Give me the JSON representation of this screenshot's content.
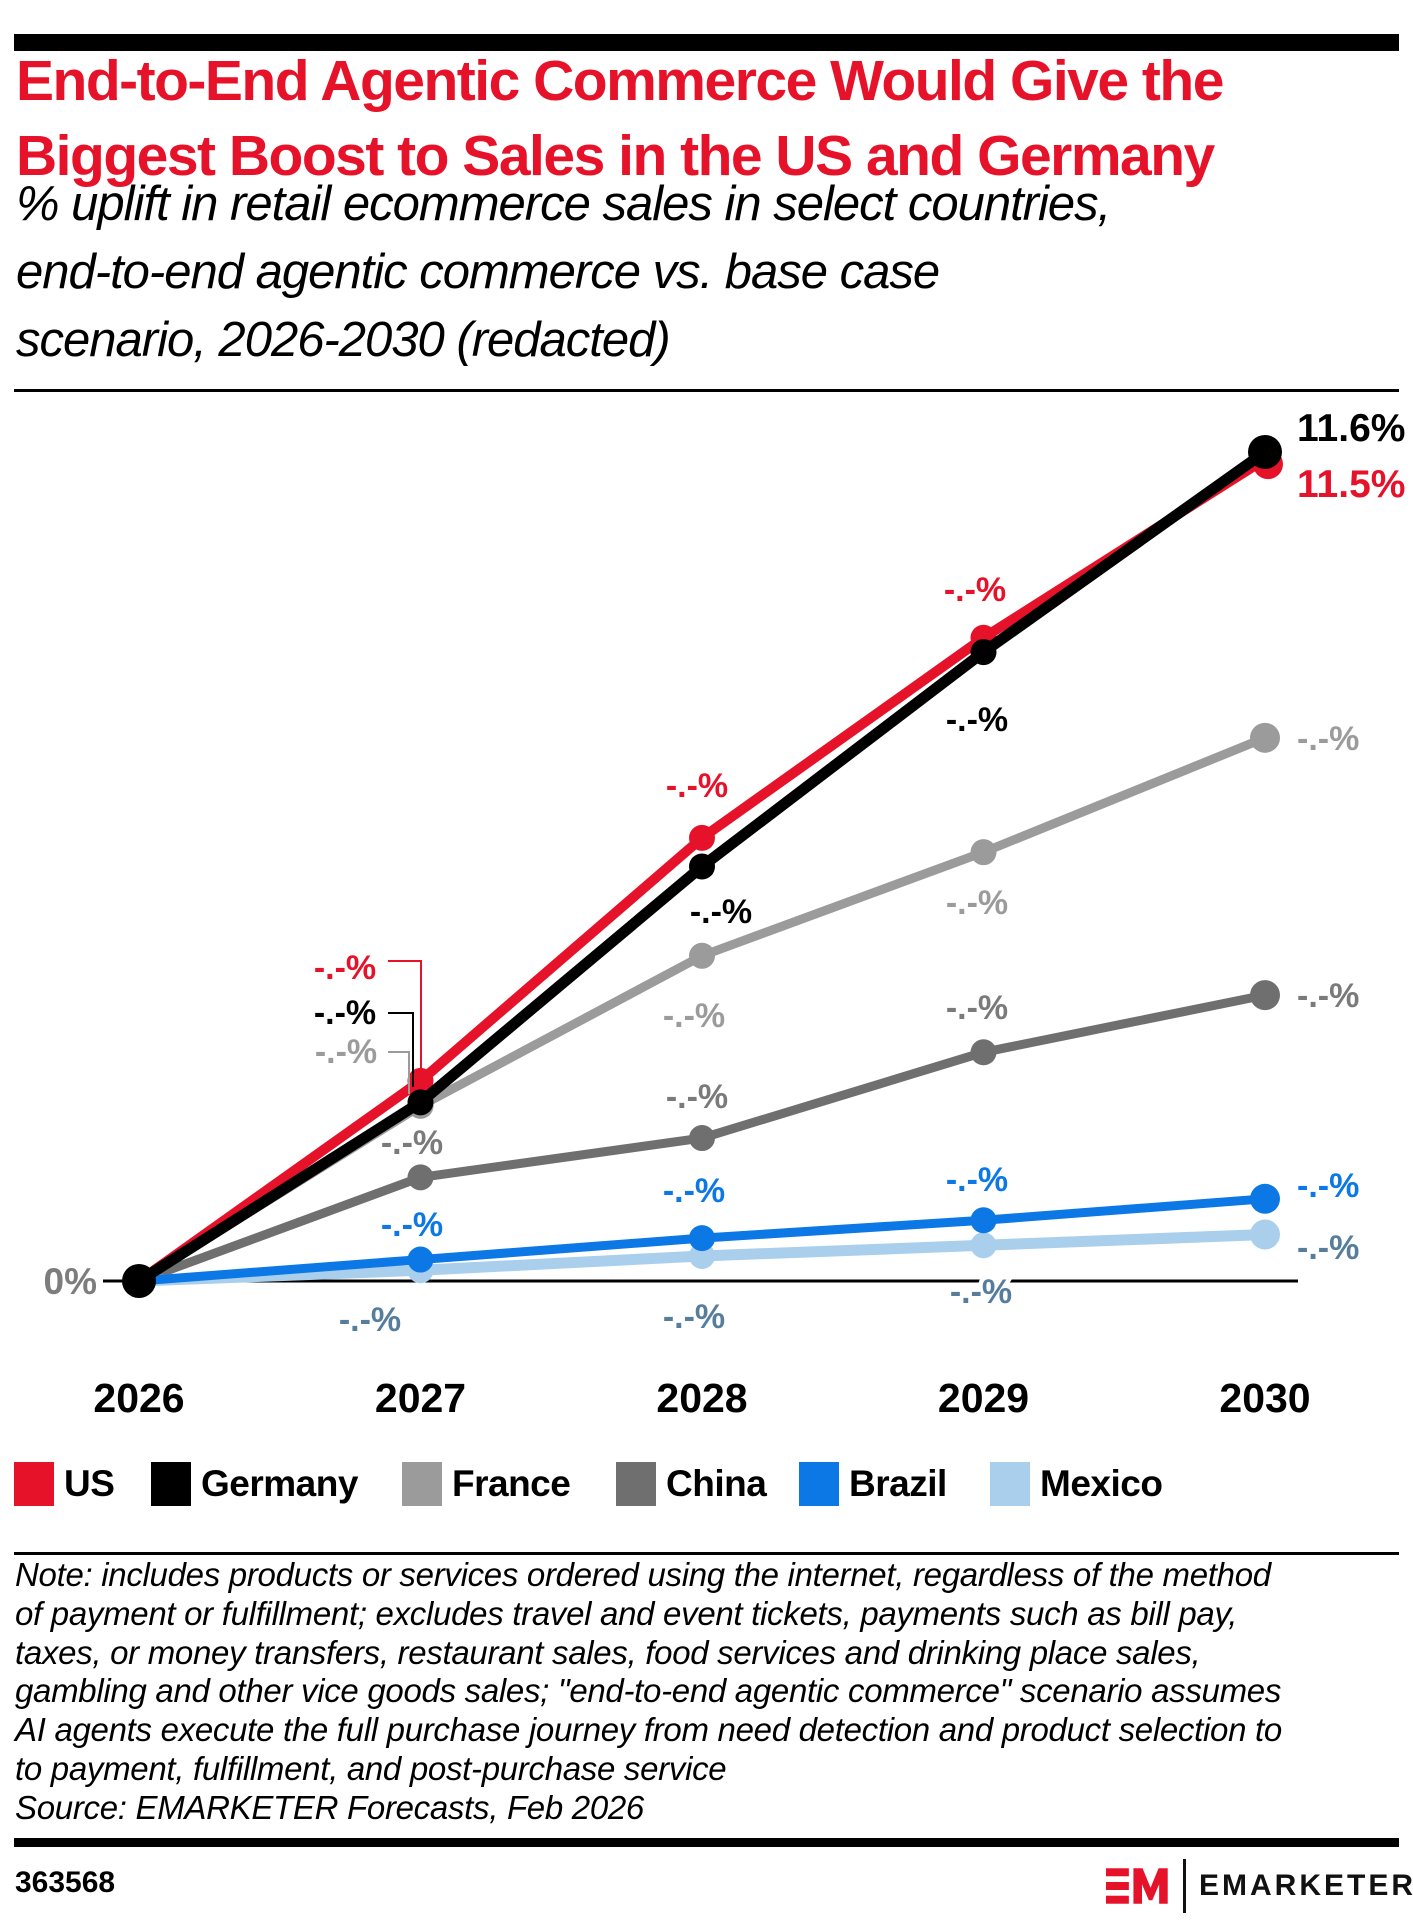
{
  "page": {
    "title_line1": "End-to-End Agentic Commerce Would Give the",
    "title_line2": "Biggest Boost to Sales in the US and Germany",
    "subtitle_line1": "% uplift in retail ecommerce sales in select countries,",
    "subtitle_line2": "end-to-end agentic commerce vs. base case",
    "subtitle_line3": "scenario, 2026-2030 (redacted)"
  },
  "chart_data": {
    "type": "line",
    "title": "End-to-End Agentic Commerce Would Give the Biggest Boost to Sales in the US and Germany",
    "subtitle": "% uplift in retail ecommerce sales in select countries, end-to-end agentic commerce vs. base case scenario, 2026-2030 (redacted)",
    "x_labels": [
      "2026",
      "2027",
      "2028",
      "2029",
      "2030"
    ],
    "y_axis_label": "0%",
    "ylim": [
      0,
      12
    ],
    "grid": false,
    "legend_position": "bottom",
    "redaction_label": "-.-%",
    "series": [
      {
        "name": "US",
        "color": "#E6122A",
        "values": [
          0,
          2.8,
          6.2,
          9.0,
          11.5
        ],
        "point_labels": [
          "",
          "-.-%",
          "-.-%",
          "-.-%",
          "11.5%"
        ]
      },
      {
        "name": "Germany",
        "color": "#000000",
        "values": [
          0,
          2.5,
          5.8,
          8.8,
          11.6
        ],
        "point_labels": [
          "",
          "-.-%",
          "-.-%",
          "-.-%",
          "11.6%"
        ]
      },
      {
        "name": "France",
        "color": "#9B9B9B",
        "values": [
          0,
          2.45,
          4.55,
          6.0,
          7.6
        ],
        "point_labels": [
          "",
          "-.-%",
          "-.-%",
          "-.-%",
          "-.-%"
        ]
      },
      {
        "name": "China",
        "color": "#6F6F6F",
        "label_color": "#7A7A7A",
        "values": [
          0,
          1.45,
          2.0,
          3.2,
          4.0
        ],
        "point_labels": [
          "",
          "-.-%",
          "-.-%",
          "-.-%",
          "-.-%"
        ]
      },
      {
        "name": "Brazil",
        "color": "#0C78E6",
        "values": [
          0,
          0.3,
          0.6,
          0.85,
          1.15
        ],
        "point_labels": [
          "",
          "-.-%",
          "-.-%",
          "-.-%",
          "-.-%"
        ]
      },
      {
        "name": "Mexico",
        "color": "#A9CFEC",
        "label_color": "#567D9C",
        "values": [
          0,
          0.15,
          0.35,
          0.5,
          0.65
        ],
        "point_labels": [
          "",
          "-.-%",
          "-.-%",
          "-.-%",
          "-.-%"
        ]
      }
    ]
  },
  "note": {
    "lines": [
      "Note: includes products or services ordered using the internet, regardless of the method",
      "of payment or fulfillment; excludes travel and event tickets, payments such as bill pay,",
      "taxes, or money transfers, restaurant sales, food services and drinking place sales,",
      "gambling and other vice goods sales; \"end-to-end agentic commerce\" scenario assumes",
      "AI agents execute the full purchase journey from need detection and product selection to",
      "to payment, fulfillment, and post-purchase service"
    ],
    "source": "Source: EMARKETER Forecasts, Feb 2026"
  },
  "footer": {
    "chart_id": "363568",
    "logo_text": "EMARKETER"
  }
}
